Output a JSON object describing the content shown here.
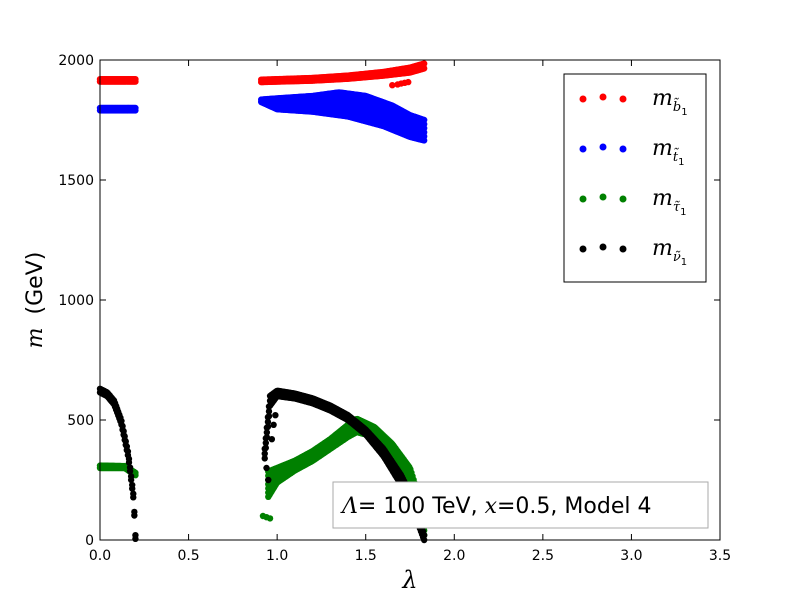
{
  "chart_data": {
    "type": "scatter",
    "xlabel": "λ",
    "ylabel_math": "m",
    "ylabel_unit": "(GeV)",
    "xlim": [
      0.0,
      3.5
    ],
    "ylim": [
      0,
      2000
    ],
    "x_ticks": [
      0.0,
      0.5,
      1.0,
      1.5,
      2.0,
      2.5,
      3.0,
      3.5
    ],
    "x_tick_labels": [
      "0.0",
      "0.5",
      "1.0",
      "1.5",
      "2.0",
      "2.5",
      "3.0",
      "3.5"
    ],
    "y_ticks": [
      0,
      500,
      1000,
      1500,
      2000
    ],
    "y_tick_labels": [
      "0",
      "500",
      "1000",
      "1500",
      "2000"
    ],
    "grid": false,
    "legend_position": "top-right",
    "annotation": {
      "sym": "Λ",
      "text1": "= 100 TeV, ",
      "xsym": "x",
      "text2": "=0.5, Model 4",
      "position": "bottom-right"
    },
    "colors": {
      "sbottom": "#ff0000",
      "stop": "#0000ff",
      "stau": "#008000",
      "sneutrino": "#000000"
    },
    "series": [
      {
        "name": "m_b̃1",
        "legend_base": "m",
        "legend_sub": "b̃",
        "legend_subsub": "1",
        "color": "#ff0000",
        "upper": [
          [
            0.0,
            1920
          ],
          [
            0.2,
            1920
          ],
          [
            0.91,
            1918
          ],
          [
            1.0,
            1920
          ],
          [
            1.2,
            1925
          ],
          [
            1.4,
            1935
          ],
          [
            1.6,
            1950
          ],
          [
            1.75,
            1968
          ],
          [
            1.83,
            1985
          ]
        ],
        "lower": [
          [
            0.0,
            1910
          ],
          [
            0.2,
            1910
          ],
          [
            0.91,
            1908
          ],
          [
            1.0,
            1910
          ],
          [
            1.2,
            1914
          ],
          [
            1.4,
            1922
          ],
          [
            1.6,
            1935
          ],
          [
            1.75,
            1948
          ],
          [
            1.83,
            1965
          ]
        ],
        "extra": [
          [
            1.65,
            1895
          ],
          [
            1.68,
            1898
          ],
          [
            1.7,
            1902
          ],
          [
            1.72,
            1905
          ],
          [
            1.74,
            1908
          ]
        ]
      },
      {
        "name": "m_t̃1",
        "legend_base": "m",
        "legend_sub": "t̃",
        "legend_subsub": "1",
        "color": "#0000ff",
        "upper": [
          [
            0.0,
            1800
          ],
          [
            0.2,
            1800
          ],
          [
            0.91,
            1835
          ],
          [
            1.0,
            1840
          ],
          [
            1.2,
            1850
          ],
          [
            1.35,
            1865
          ],
          [
            1.5,
            1850
          ],
          [
            1.65,
            1810
          ],
          [
            1.75,
            1770
          ],
          [
            1.83,
            1750
          ]
        ],
        "lower": [
          [
            0.0,
            1790
          ],
          [
            0.2,
            1790
          ],
          [
            0.91,
            1825
          ],
          [
            1.0,
            1795
          ],
          [
            1.2,
            1785
          ],
          [
            1.4,
            1765
          ],
          [
            1.6,
            1725
          ],
          [
            1.75,
            1680
          ],
          [
            1.83,
            1665
          ]
        ]
      },
      {
        "name": "m_τ̃1",
        "legend_base": "m",
        "legend_sub": "τ̃",
        "legend_subsub": "1",
        "color": "#008000",
        "upper": [
          [
            0.0,
            310
          ],
          [
            0.14,
            308
          ],
          [
            0.2,
            280
          ],
          [
            0.95,
            285
          ],
          [
            1.0,
            300
          ],
          [
            1.1,
            330
          ],
          [
            1.2,
            370
          ],
          [
            1.3,
            420
          ],
          [
            1.4,
            480
          ],
          [
            1.45,
            505
          ],
          [
            1.55,
            470
          ],
          [
            1.65,
            400
          ],
          [
            1.75,
            300
          ],
          [
            1.8,
            180
          ],
          [
            1.83,
            40
          ]
        ],
        "lower": [
          [
            0.0,
            300
          ],
          [
            0.14,
            300
          ],
          [
            0.2,
            270
          ],
          [
            0.95,
            180
          ],
          [
            1.0,
            240
          ],
          [
            1.1,
            290
          ],
          [
            1.2,
            330
          ],
          [
            1.3,
            380
          ],
          [
            1.4,
            430
          ],
          [
            1.45,
            450
          ],
          [
            1.55,
            430
          ],
          [
            1.65,
            360
          ],
          [
            1.75,
            250
          ],
          [
            1.8,
            120
          ],
          [
            1.83,
            20
          ]
        ],
        "extra": [
          [
            0.92,
            100
          ],
          [
            0.94,
            95
          ],
          [
            0.96,
            90
          ]
        ]
      },
      {
        "name": "m_ν̃1",
        "legend_base": "m",
        "legend_sub": "ν̃",
        "legend_subsub": "1",
        "color": "#000000",
        "upper": [
          [
            0.0,
            630
          ],
          [
            0.04,
            615
          ],
          [
            0.08,
            580
          ],
          [
            0.12,
            500
          ],
          [
            0.16,
            360
          ],
          [
            0.19,
            180
          ],
          [
            0.2,
            20
          ]
        ],
        "upper2": [
          [
            0.93,
            380
          ],
          [
            0.96,
            600
          ],
          [
            1.0,
            622
          ],
          [
            1.1,
            610
          ],
          [
            1.2,
            590
          ],
          [
            1.3,
            560
          ],
          [
            1.4,
            520
          ],
          [
            1.5,
            460
          ],
          [
            1.6,
            380
          ],
          [
            1.7,
            270
          ],
          [
            1.78,
            150
          ],
          [
            1.83,
            20
          ]
        ],
        "lower2": [
          [
            0.93,
            340
          ],
          [
            0.96,
            560
          ],
          [
            1.0,
            600
          ],
          [
            1.1,
            590
          ],
          [
            1.2,
            570
          ],
          [
            1.3,
            540
          ],
          [
            1.4,
            500
          ],
          [
            1.5,
            440
          ],
          [
            1.6,
            350
          ],
          [
            1.7,
            230
          ],
          [
            1.78,
            100
          ],
          [
            1.83,
            0
          ]
        ],
        "extra": [
          [
            0.94,
            300
          ],
          [
            0.95,
            250
          ],
          [
            0.97,
            420
          ],
          [
            0.98,
            480
          ],
          [
            0.99,
            520
          ]
        ]
      }
    ]
  }
}
